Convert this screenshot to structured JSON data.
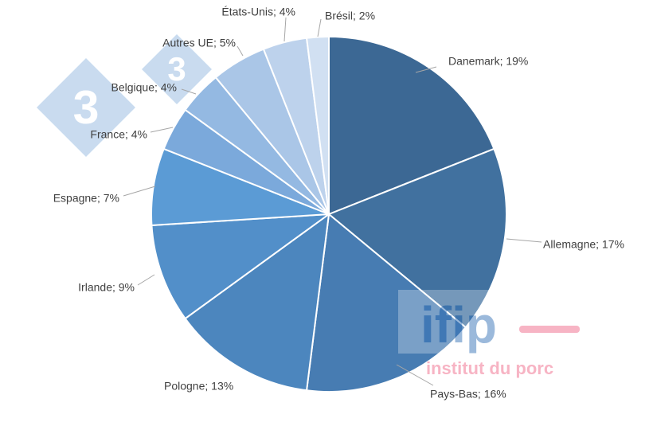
{
  "chart_data": {
    "type": "pie",
    "title": "",
    "start_angle_deg": 0,
    "direction": "clockwise",
    "slices": [
      {
        "label": "Danemark",
        "value": 19,
        "color": "#3c6894"
      },
      {
        "label": "Allemagne",
        "value": 17,
        "color": "#41719f"
      },
      {
        "label": "Pays-Bas",
        "value": 16,
        "color": "#477cb2"
      },
      {
        "label": "Pologne",
        "value": 13,
        "color": "#4c86be"
      },
      {
        "label": "Irlande",
        "value": 9,
        "color": "#528fc9"
      },
      {
        "label": "Espagne",
        "value": 7,
        "color": "#5b9bd5"
      },
      {
        "label": "France",
        "value": 4,
        "color": "#7ba9db"
      },
      {
        "label": "Belgique",
        "value": 4,
        "color": "#94b9e2"
      },
      {
        "label": "Autres UE",
        "value": 5,
        "color": "#aac6e7"
      },
      {
        "label": "États-Unis",
        "value": 4,
        "color": "#bdd2ec"
      },
      {
        "label": "Brésil",
        "value": 2,
        "color": "#d1e0f2"
      }
    ],
    "data_labels": [
      "Danemark; 19%",
      "Allemagne; 17%",
      "Pays-Bas; 16%",
      "Pologne; 13%",
      "Irlande; 9%",
      "Espagne; 7%",
      "France; 4%",
      "Belgique; 4%",
      "Autres UE; 5%",
      "États-Unis; 4%",
      "Brésil; 2%"
    ],
    "legend": "none"
  },
  "watermark": {
    "logo_text": "ifip",
    "tagline": "institut du porc",
    "badge_glyph": "3",
    "colors": {
      "logo": "#3a75b9",
      "tagline": "#f06b8a",
      "badge": "#9dbfe3"
    }
  }
}
